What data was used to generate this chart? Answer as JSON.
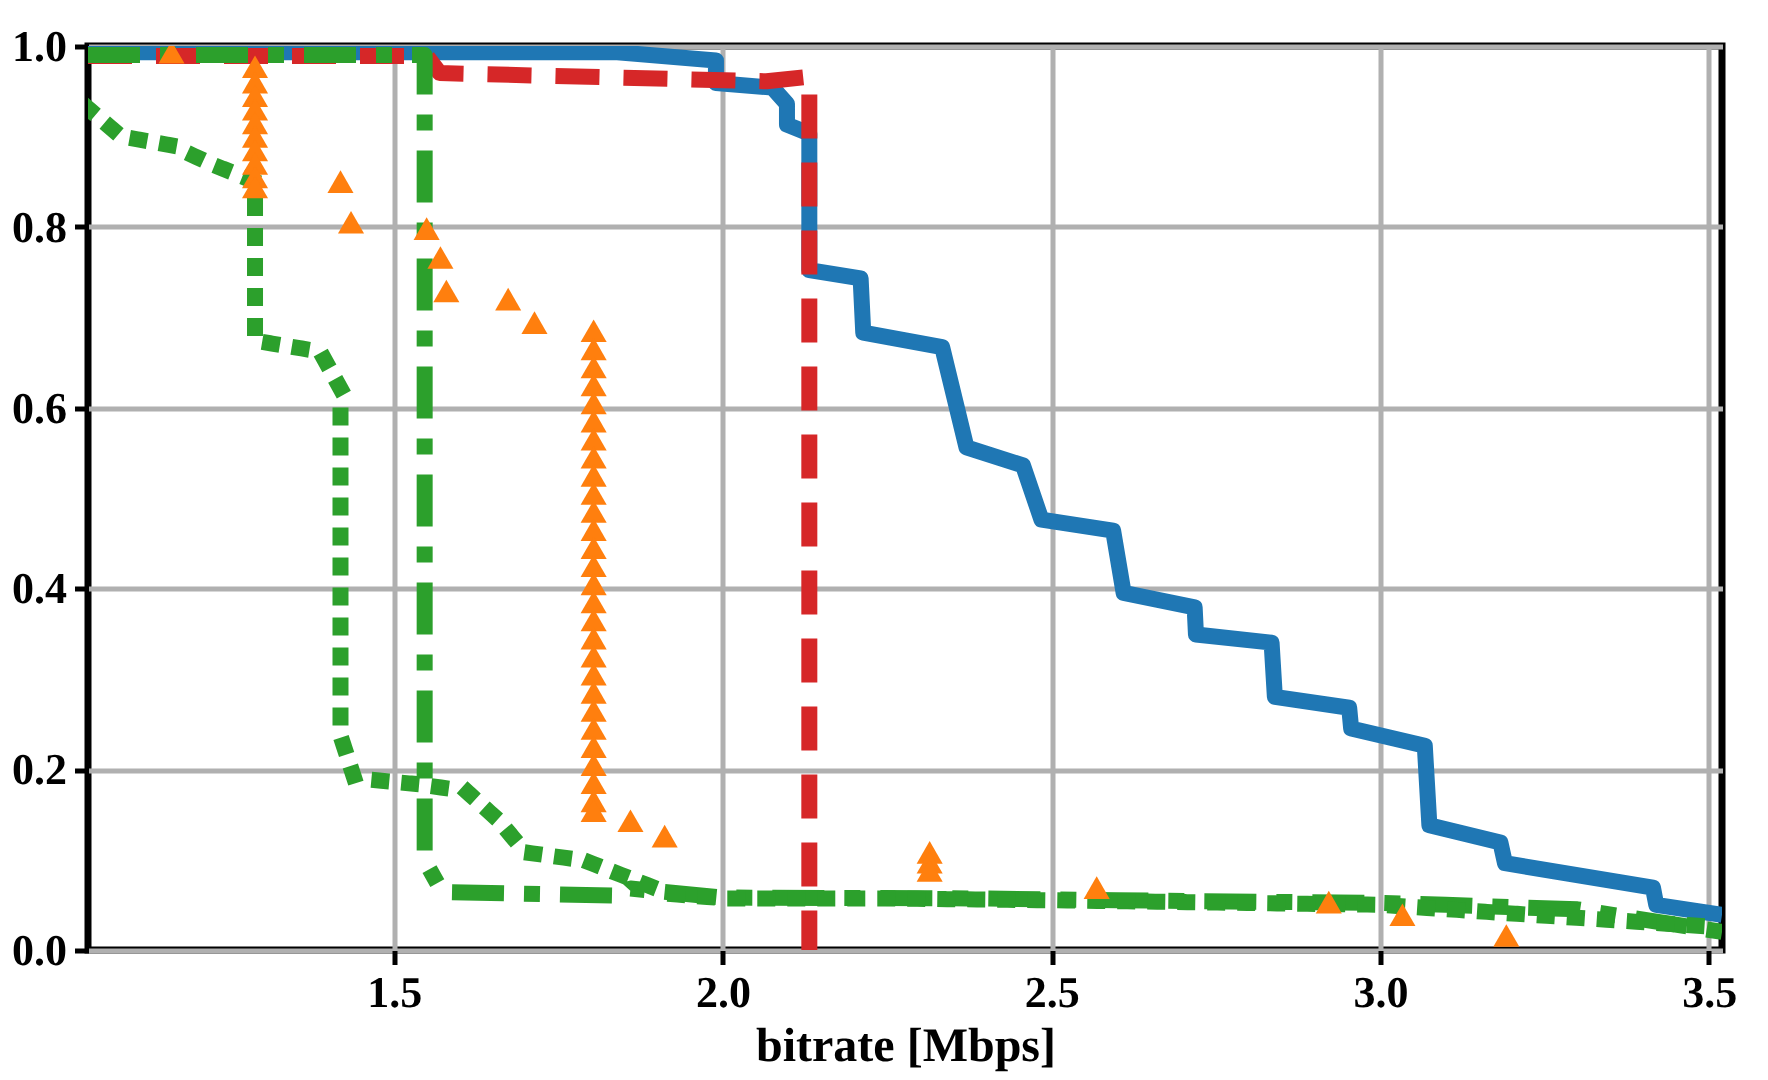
{
  "chart_data": {
    "type": "line",
    "xlabel": "bitrate [Mbps]",
    "xlim": [
      1.035,
      3.52
    ],
    "ylim": [
      0,
      1
    ],
    "xticks": [
      1.5,
      {
        "value": 2,
        "label": "2.0"
      },
      2.5,
      {
        "value": 3,
        "label": "3.0"
      },
      3.5
    ],
    "yticks": [
      {
        "value": 0,
        "label": "0.0"
      },
      0.2,
      0.4,
      0.6,
      0.8,
      {
        "value": 1,
        "label": "1.0"
      }
    ],
    "grid": true,
    "series": [
      {
        "color": "#1f77b4",
        "line_style": "solid",
        "marker": "none",
        "x": [
          1.035,
          1.84,
          1.99,
          1.99,
          2.076,
          2.098,
          2.098,
          2.132,
          2.132,
          2.21,
          2.214,
          2.334,
          2.371,
          2.457,
          2.485,
          2.594,
          2.61,
          2.718,
          2.72,
          2.835,
          2.84,
          2.953,
          2.956,
          3.068,
          3.075,
          3.183,
          3.19,
          3.415,
          3.42,
          3.52
        ],
        "values": [
          0.993,
          0.993,
          0.984,
          0.959,
          0.954,
          0.936,
          0.913,
          0.903,
          0.752,
          0.743,
          0.683,
          0.667,
          0.556,
          0.536,
          0.476,
          0.464,
          0.395,
          0.379,
          0.349,
          0.34,
          0.28,
          0.268,
          0.245,
          0.226,
          0.138,
          0.119,
          0.096,
          0.069,
          0.05,
          0.039
        ]
      },
      {
        "color": "#d62728",
        "line_style": "dashed",
        "marker": "none",
        "x": [
          1.035,
          1.55,
          1.57,
          2.067,
          2.132,
          2.132
        ],
        "values": [
          0.989,
          0.989,
          0.97,
          0.961,
          0.966,
          0
        ]
      },
      {
        "color": "#2ca02c",
        "line_style": "dashdot",
        "marker": "none",
        "x": [
          1.035,
          1.547,
          1.547,
          1.574,
          1.85,
          1.86,
          2.0,
          2.4,
          2.6,
          3.0,
          3.1,
          3.3,
          3.52
        ],
        "values": [
          0.99,
          0.99,
          0.099,
          0.064,
          0.06,
          0.068,
          0.058,
          0.057,
          0.055,
          0.052,
          0.05,
          0.045,
          0.02
        ]
      },
      {
        "color": "#2ca02c",
        "line_style": "dotted",
        "marker": "none",
        "x": [
          1.035,
          1.085,
          1.162,
          1.224,
          1.289,
          1.289,
          1.388,
          1.419,
          1.419,
          1.44,
          1.528,
          1.61,
          1.66,
          1.7,
          1.79,
          1.92,
          2.005,
          2.25,
          2.5,
          3.0,
          3.52
        ],
        "values": [
          0.931,
          0.9,
          0.89,
          0.869,
          0.85,
          0.674,
          0.662,
          0.621,
          0.237,
          0.19,
          0.184,
          0.176,
          0.143,
          0.108,
          0.099,
          0.062,
          0.057,
          0.057,
          0.055,
          0.05,
          0.025
        ]
      },
      {
        "type": "scatter",
        "color": "#ff7f0e",
        "marker": "triangle",
        "x": [
          1.162,
          1.289,
          1.289,
          1.289,
          1.289,
          1.289,
          1.289,
          1.289,
          1.289,
          1.289,
          1.289,
          1.419,
          1.435,
          1.55,
          1.571,
          1.58,
          1.674,
          1.714,
          1.804,
          1.804,
          1.804,
          1.804,
          1.804,
          1.804,
          1.804,
          1.804,
          1.804,
          1.804,
          1.804,
          1.804,
          1.804,
          1.804,
          1.804,
          1.804,
          1.804,
          1.804,
          1.804,
          1.804,
          1.804,
          1.804,
          1.804,
          1.804,
          1.804,
          1.804,
          1.804,
          1.804,
          1.86,
          1.912,
          2.315,
          2.315,
          2.315,
          2.569,
          2.922,
          3.034,
          3.192
        ],
        "values": [
          0.993,
          0.977,
          0.96,
          0.945,
          0.93,
          0.915,
          0.9,
          0.885,
          0.87,
          0.855,
          0.844,
          0.85,
          0.805,
          0.798,
          0.766,
          0.729,
          0.72,
          0.694,
          0.685,
          0.665,
          0.645,
          0.625,
          0.605,
          0.585,
          0.565,
          0.545,
          0.525,
          0.505,
          0.485,
          0.465,
          0.445,
          0.425,
          0.405,
          0.385,
          0.365,
          0.345,
          0.325,
          0.305,
          0.285,
          0.265,
          0.245,
          0.225,
          0.205,
          0.185,
          0.165,
          0.154,
          0.143,
          0.126,
          0.108,
          0.097,
          0.088,
          0.069,
          0.053,
          0.039,
          0.016
        ]
      }
    ]
  }
}
